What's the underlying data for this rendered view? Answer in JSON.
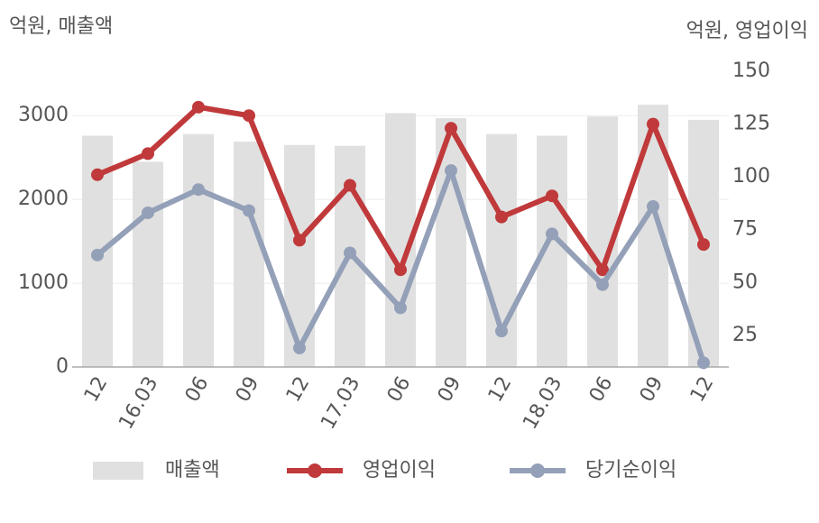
{
  "chart_data": {
    "type": "bar-line",
    "y_label": "억원, 매출액",
    "y2_label": "억원, 영업이익",
    "categories": [
      "12",
      "16.03",
      "06",
      "09",
      "12",
      "17.03",
      "06",
      "09",
      "12",
      "18.03",
      "06",
      "09",
      "12"
    ],
    "series": [
      {
        "name": "매출액",
        "type": "bar",
        "color": "#e0e0e0",
        "values": [
          2760,
          2450,
          2780,
          2690,
          2650,
          2640,
          3030,
          2970,
          2780,
          2760,
          2990,
          3130,
          2950
        ]
      },
      {
        "name": "영업이익",
        "type": "line",
        "axis": "y2",
        "color": "#c0393b",
        "values": [
          101,
          111,
          133,
          129,
          70,
          96,
          56,
          123,
          81,
          91,
          56,
          125,
          68
        ]
      },
      {
        "name": "당기순이익",
        "type": "line",
        "axis": "y2",
        "color": "#94a0b8",
        "values": [
          63,
          83,
          94,
          84,
          19,
          64,
          38,
          103,
          27,
          73,
          49,
          86,
          12
        ]
      }
    ],
    "ylim": [
      0,
      3530
    ],
    "yticks": [
      0,
      1000,
      2000,
      3000
    ],
    "y2lim": [
      10,
      150
    ],
    "y2ticks": [
      25,
      50,
      75,
      100,
      125,
      150
    ],
    "grid": true
  }
}
